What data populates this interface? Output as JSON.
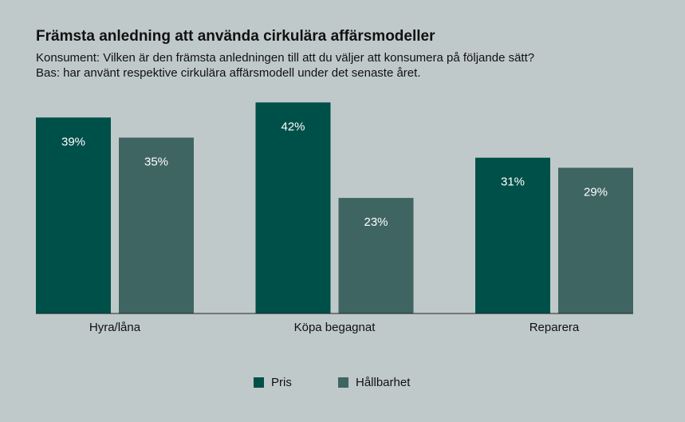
{
  "chart_data": {
    "type": "bar",
    "title": "Främsta anledning att använda cirkulära affärsmodeller",
    "subtitle": [
      "Konsument: Vilken är den främsta anledningen till att du väljer att konsumera på följande sätt?",
      "Bas: har använt respektive cirkulära affärsmodell under det senaste året."
    ],
    "categories": [
      "Hyra/låna",
      "Köpa begagnat",
      "Reparera"
    ],
    "series": [
      {
        "name": "Pris",
        "color": "#00504a",
        "values": [
          39,
          42,
          31
        ],
        "value_labels": [
          "39%",
          "42%",
          "31%"
        ]
      },
      {
        "name": "Hållbarhet",
        "color": "#3f6563",
        "values": [
          35,
          23,
          29
        ],
        "value_labels": [
          "35%",
          "23%",
          "29%"
        ]
      }
    ]
  }
}
